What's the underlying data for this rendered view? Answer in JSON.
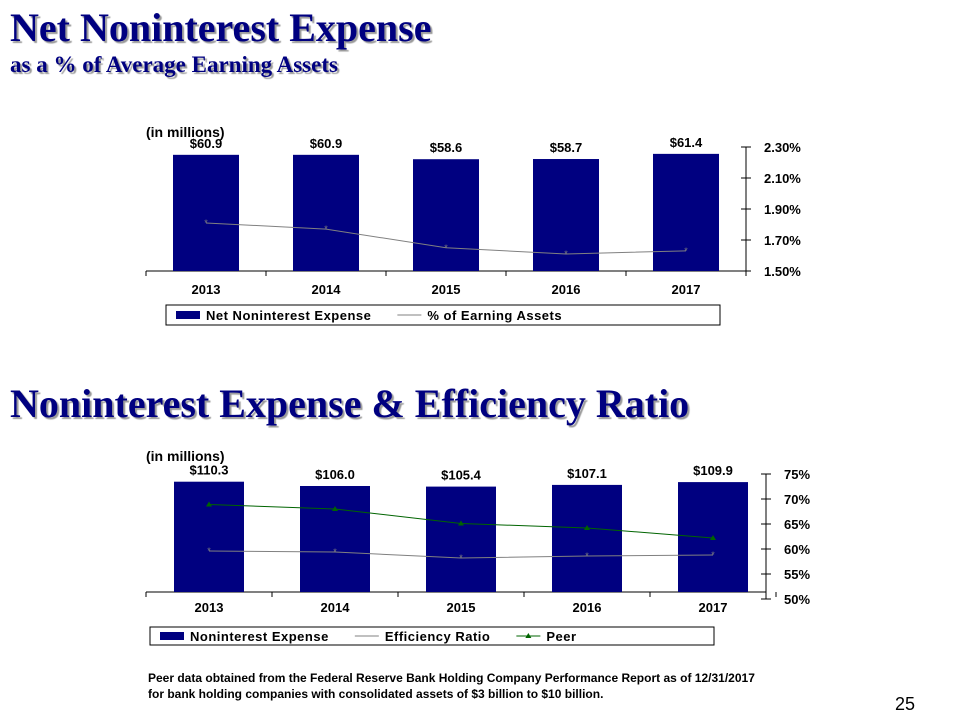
{
  "slide": {
    "title1": "Net Noninterest Expense",
    "subtitle1": "as a % of Average Earning Assets",
    "title2": "Noninterest Expense & Efficiency Ratio",
    "unit1": "(in millions)",
    "unit2": "(in millions)",
    "footnote_line1": "Peer data obtained from the Federal Reserve Bank Holding Company Performance Report as of 12/31/2017",
    "footnote_line2": "for bank holding companies with consolidated assets  of $3 billion to $10 billion.",
    "page_number": "25"
  },
  "colors": {
    "bar": "#000080",
    "line_gray": "#808080",
    "line_peer": "#006400",
    "title": "#000080"
  },
  "chart_data": [
    {
      "type": "bar",
      "categories": [
        "2013",
        "2014",
        "2015",
        "2016",
        "2017"
      ],
      "series": [
        {
          "name": "Net Noninterest Expense",
          "values": [
            60.9,
            60.9,
            58.6,
            58.7,
            61.4
          ],
          "labels": [
            "$60.9",
            "$60.9",
            "$58.6",
            "$58.7",
            "$61.4"
          ]
        },
        {
          "name": "% of Earning Assets",
          "type": "line",
          "axis": "right",
          "values": [
            1.81,
            1.77,
            1.65,
            1.61,
            1.63
          ]
        }
      ],
      "ylim": [
        0,
        65
      ],
      "y2lim": [
        1.5,
        2.3
      ],
      "y2_ticks": [
        "2.30%",
        "2.10%",
        "1.90%",
        "1.70%",
        "1.50%"
      ],
      "legend": "bottom"
    },
    {
      "type": "bar",
      "categories": [
        "2013",
        "2014",
        "2015",
        "2016",
        "2017"
      ],
      "series": [
        {
          "name": "Noninterest Expense",
          "values": [
            110.3,
            106.0,
            105.4,
            107.1,
            109.9
          ],
          "labels": [
            "$110.3",
            "$106.0",
            "$105.4",
            "$107.1",
            "$109.9"
          ]
        },
        {
          "name": "Efficiency Ratio",
          "type": "line",
          "axis": "right",
          "values": [
            59.6,
            59.4,
            58.2,
            58.6,
            58.8
          ]
        },
        {
          "name": "Peer",
          "type": "line",
          "axis": "right",
          "values": [
            68.9,
            68.0,
            65.1,
            64.2,
            62.2
          ]
        }
      ],
      "ylim": [
        0,
        118
      ],
      "y2lim": [
        50,
        75
      ],
      "y2_ticks": [
        "75%",
        "70%",
        "65%",
        "60%",
        "55%",
        "50%"
      ],
      "legend": "bottom"
    }
  ]
}
